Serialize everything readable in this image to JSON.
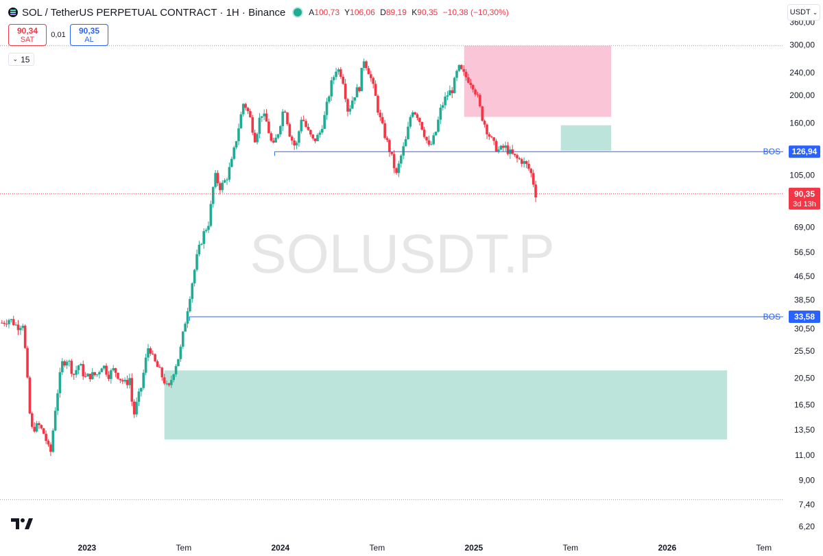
{
  "header": {
    "title": "SOL / TetherUS PERPETUAL CONTRACT · 1H · Binance",
    "ohlc": [
      {
        "k": "A",
        "v": "100,73"
      },
      {
        "k": "Y",
        "v": "106,06"
      },
      {
        "k": "D",
        "v": "89,19"
      },
      {
        "k": "K",
        "v": "90,35"
      }
    ],
    "change": "−10,38 (−10,30%)",
    "colors": {
      "up": "#22ab94",
      "down": "#f23645",
      "accent": "#2962ff"
    }
  },
  "trade": {
    "sell_price": "90,34",
    "sell_label": "SAT",
    "spread": "0,01",
    "buy_price": "90,35",
    "buy_label": "AL"
  },
  "interval_toggle": {
    "icon": "chevron-down-icon",
    "value": "15"
  },
  "currency_selector": {
    "label": "USDT",
    "icon": "chevron-down-icon"
  },
  "chart_data": {
    "type": "candlestick",
    "symbol": "SOLUSDT.P",
    "watermark": "SOLUSDT.P",
    "scale": "log",
    "ylim": [
      5.8,
      365
    ],
    "x_range": [
      2022.55,
      2026.6
    ],
    "y_ticks": [
      {
        "v": 360,
        "l": "360,00"
      },
      {
        "v": 300,
        "l": "300,00"
      },
      {
        "v": 240,
        "l": "240,00"
      },
      {
        "v": 200,
        "l": "200,00"
      },
      {
        "v": 160,
        "l": "160,00"
      },
      {
        "v": 126.94,
        "l": "126,94"
      },
      {
        "v": 105,
        "l": "105,00"
      },
      {
        "v": 90.35,
        "l": "90,35"
      },
      {
        "v": 69,
        "l": "69,00"
      },
      {
        "v": 56.5,
        "l": "56,50"
      },
      {
        "v": 46.5,
        "l": "46,50"
      },
      {
        "v": 38.5,
        "l": "38,50"
      },
      {
        "v": 33.58,
        "l": "33,58"
      },
      {
        "v": 30.5,
        "l": "30,50"
      },
      {
        "v": 25.5,
        "l": "25,50"
      },
      {
        "v": 20.5,
        "l": "20,50"
      },
      {
        "v": 16.5,
        "l": "16,50"
      },
      {
        "v": 13.5,
        "l": "13,50"
      },
      {
        "v": 11,
        "l": "11,00"
      },
      {
        "v": 9,
        "l": "9,00"
      },
      {
        "v": 7.4,
        "l": "7,40"
      },
      {
        "v": 6.2,
        "l": "6,20"
      }
    ],
    "x_ticks": [
      {
        "t": 2023.0,
        "l": "2023",
        "bold": true
      },
      {
        "t": 2023.5,
        "l": "Tem",
        "bold": false
      },
      {
        "t": 2024.0,
        "l": "2024",
        "bold": true
      },
      {
        "t": 2024.5,
        "l": "Tem",
        "bold": false
      },
      {
        "t": 2025.0,
        "l": "2025",
        "bold": true
      },
      {
        "t": 2025.5,
        "l": "Tem",
        "bold": false
      },
      {
        "t": 2026.0,
        "l": "2026",
        "bold": true
      },
      {
        "t": 2026.5,
        "l": "Tem",
        "bold": false
      }
    ],
    "price_path": [
      [
        2022.56,
        32
      ],
      [
        2022.6,
        33
      ],
      [
        2022.64,
        31
      ],
      [
        2022.67,
        32
      ],
      [
        2022.71,
        13.5
      ],
      [
        2022.75,
        14
      ],
      [
        2022.78,
        13
      ],
      [
        2022.81,
        11
      ],
      [
        2022.84,
        17
      ],
      [
        2022.87,
        23
      ],
      [
        2022.9,
        24
      ],
      [
        2022.93,
        21
      ],
      [
        2022.96,
        23
      ],
      [
        2022.99,
        20.5
      ],
      [
        2023.02,
        21
      ],
      [
        2023.05,
        21
      ],
      [
        2023.08,
        23
      ],
      [
        2023.11,
        21
      ],
      [
        2023.14,
        22
      ],
      [
        2023.17,
        20.5
      ],
      [
        2023.2,
        19.5
      ],
      [
        2023.22,
        20.5
      ],
      [
        2023.24,
        15
      ],
      [
        2023.26,
        17
      ],
      [
        2023.28,
        19
      ],
      [
        2023.3,
        23
      ],
      [
        2023.32,
        27
      ],
      [
        2023.34,
        24
      ],
      [
        2023.37,
        22
      ],
      [
        2023.4,
        20
      ],
      [
        2023.42,
        18.5
      ],
      [
        2023.45,
        22
      ],
      [
        2023.48,
        25
      ],
      [
        2023.51,
        33
      ],
      [
        2023.54,
        43
      ],
      [
        2023.57,
        55
      ],
      [
        2023.6,
        65
      ],
      [
        2023.63,
        72
      ],
      [
        2023.66,
        105
      ],
      [
        2023.69,
        95
      ],
      [
        2023.72,
        102
      ],
      [
        2023.75,
        118
      ],
      [
        2023.78,
        150
      ],
      [
        2023.81,
        190
      ],
      [
        2023.84,
        170
      ],
      [
        2023.87,
        140
      ],
      [
        2023.9,
        175
      ],
      [
        2023.93,
        160
      ],
      [
        2023.96,
        130
      ],
      [
        2023.99,
        150
      ],
      [
        2024.02,
        185
      ],
      [
        2024.05,
        145
      ],
      [
        2024.08,
        130
      ],
      [
        2024.11,
        170
      ],
      [
        2024.14,
        150
      ],
      [
        2024.17,
        138
      ],
      [
        2024.2,
        145
      ],
      [
        2024.23,
        170
      ],
      [
        2024.26,
        215
      ],
      [
        2024.29,
        250
      ],
      [
        2024.32,
        235
      ],
      [
        2024.35,
        175
      ],
      [
        2024.38,
        200
      ],
      [
        2024.41,
        215
      ],
      [
        2024.43,
        270
      ],
      [
        2024.46,
        240
      ],
      [
        2024.49,
        200
      ],
      [
        2024.51,
        170
      ],
      [
        2024.54,
        145
      ],
      [
        2024.57,
        125
      ],
      [
        2024.6,
        105
      ],
      [
        2024.62,
        120
      ],
      [
        2024.65,
        140
      ],
      [
        2024.68,
        180
      ],
      [
        2024.71,
        170
      ],
      [
        2024.74,
        150
      ],
      [
        2024.77,
        130
      ],
      [
        2024.8,
        145
      ],
      [
        2024.83,
        180
      ],
      [
        2024.86,
        200
      ],
      [
        2024.89,
        210
      ],
      [
        2024.92,
        250
      ],
      [
        2024.95,
        235
      ],
      [
        2024.98,
        225
      ],
      [
        2025.0,
        215
      ],
      [
        2025.02,
        195
      ],
      [
        2025.04,
        170
      ],
      [
        2025.07,
        150
      ],
      [
        2025.1,
        135
      ],
      [
        2025.13,
        128
      ],
      [
        2025.16,
        132
      ],
      [
        2025.19,
        125
      ],
      [
        2025.22,
        120
      ],
      [
        2025.25,
        118
      ],
      [
        2025.28,
        112
      ],
      [
        2025.3,
        105
      ],
      [
        2025.32,
        90.35
      ]
    ],
    "zones": [
      {
        "name": "supply-zone",
        "t0": 2024.95,
        "t1": 2025.71,
        "lo": 168,
        "hi": 298,
        "color": "#f8bbd0"
      },
      {
        "name": "demand-zone-upper",
        "t0": 2025.45,
        "t1": 2025.71,
        "lo": 128,
        "hi": 157,
        "color": "#b2dfd4"
      },
      {
        "name": "demand-zone-lower",
        "t0": 2023.4,
        "t1": 2026.31,
        "lo": 12.5,
        "hi": 21.8,
        "color": "#b2dfd4"
      }
    ],
    "bos_lines": [
      {
        "label": "BOS",
        "value": 126.94,
        "value_label": "126,94",
        "t0": 2023.97,
        "color": "#2962ff"
      },
      {
        "label": "BOS",
        "value": 33.58,
        "value_label": "33,58",
        "t0": 2023.53,
        "color": "#2962ff"
      }
    ],
    "last_price": {
      "value": 90.35,
      "label": "90,35",
      "countdown": "3d 13h",
      "color": "#f23645"
    },
    "dotted_levels": [
      298,
      7.7
    ],
    "grid": false
  }
}
